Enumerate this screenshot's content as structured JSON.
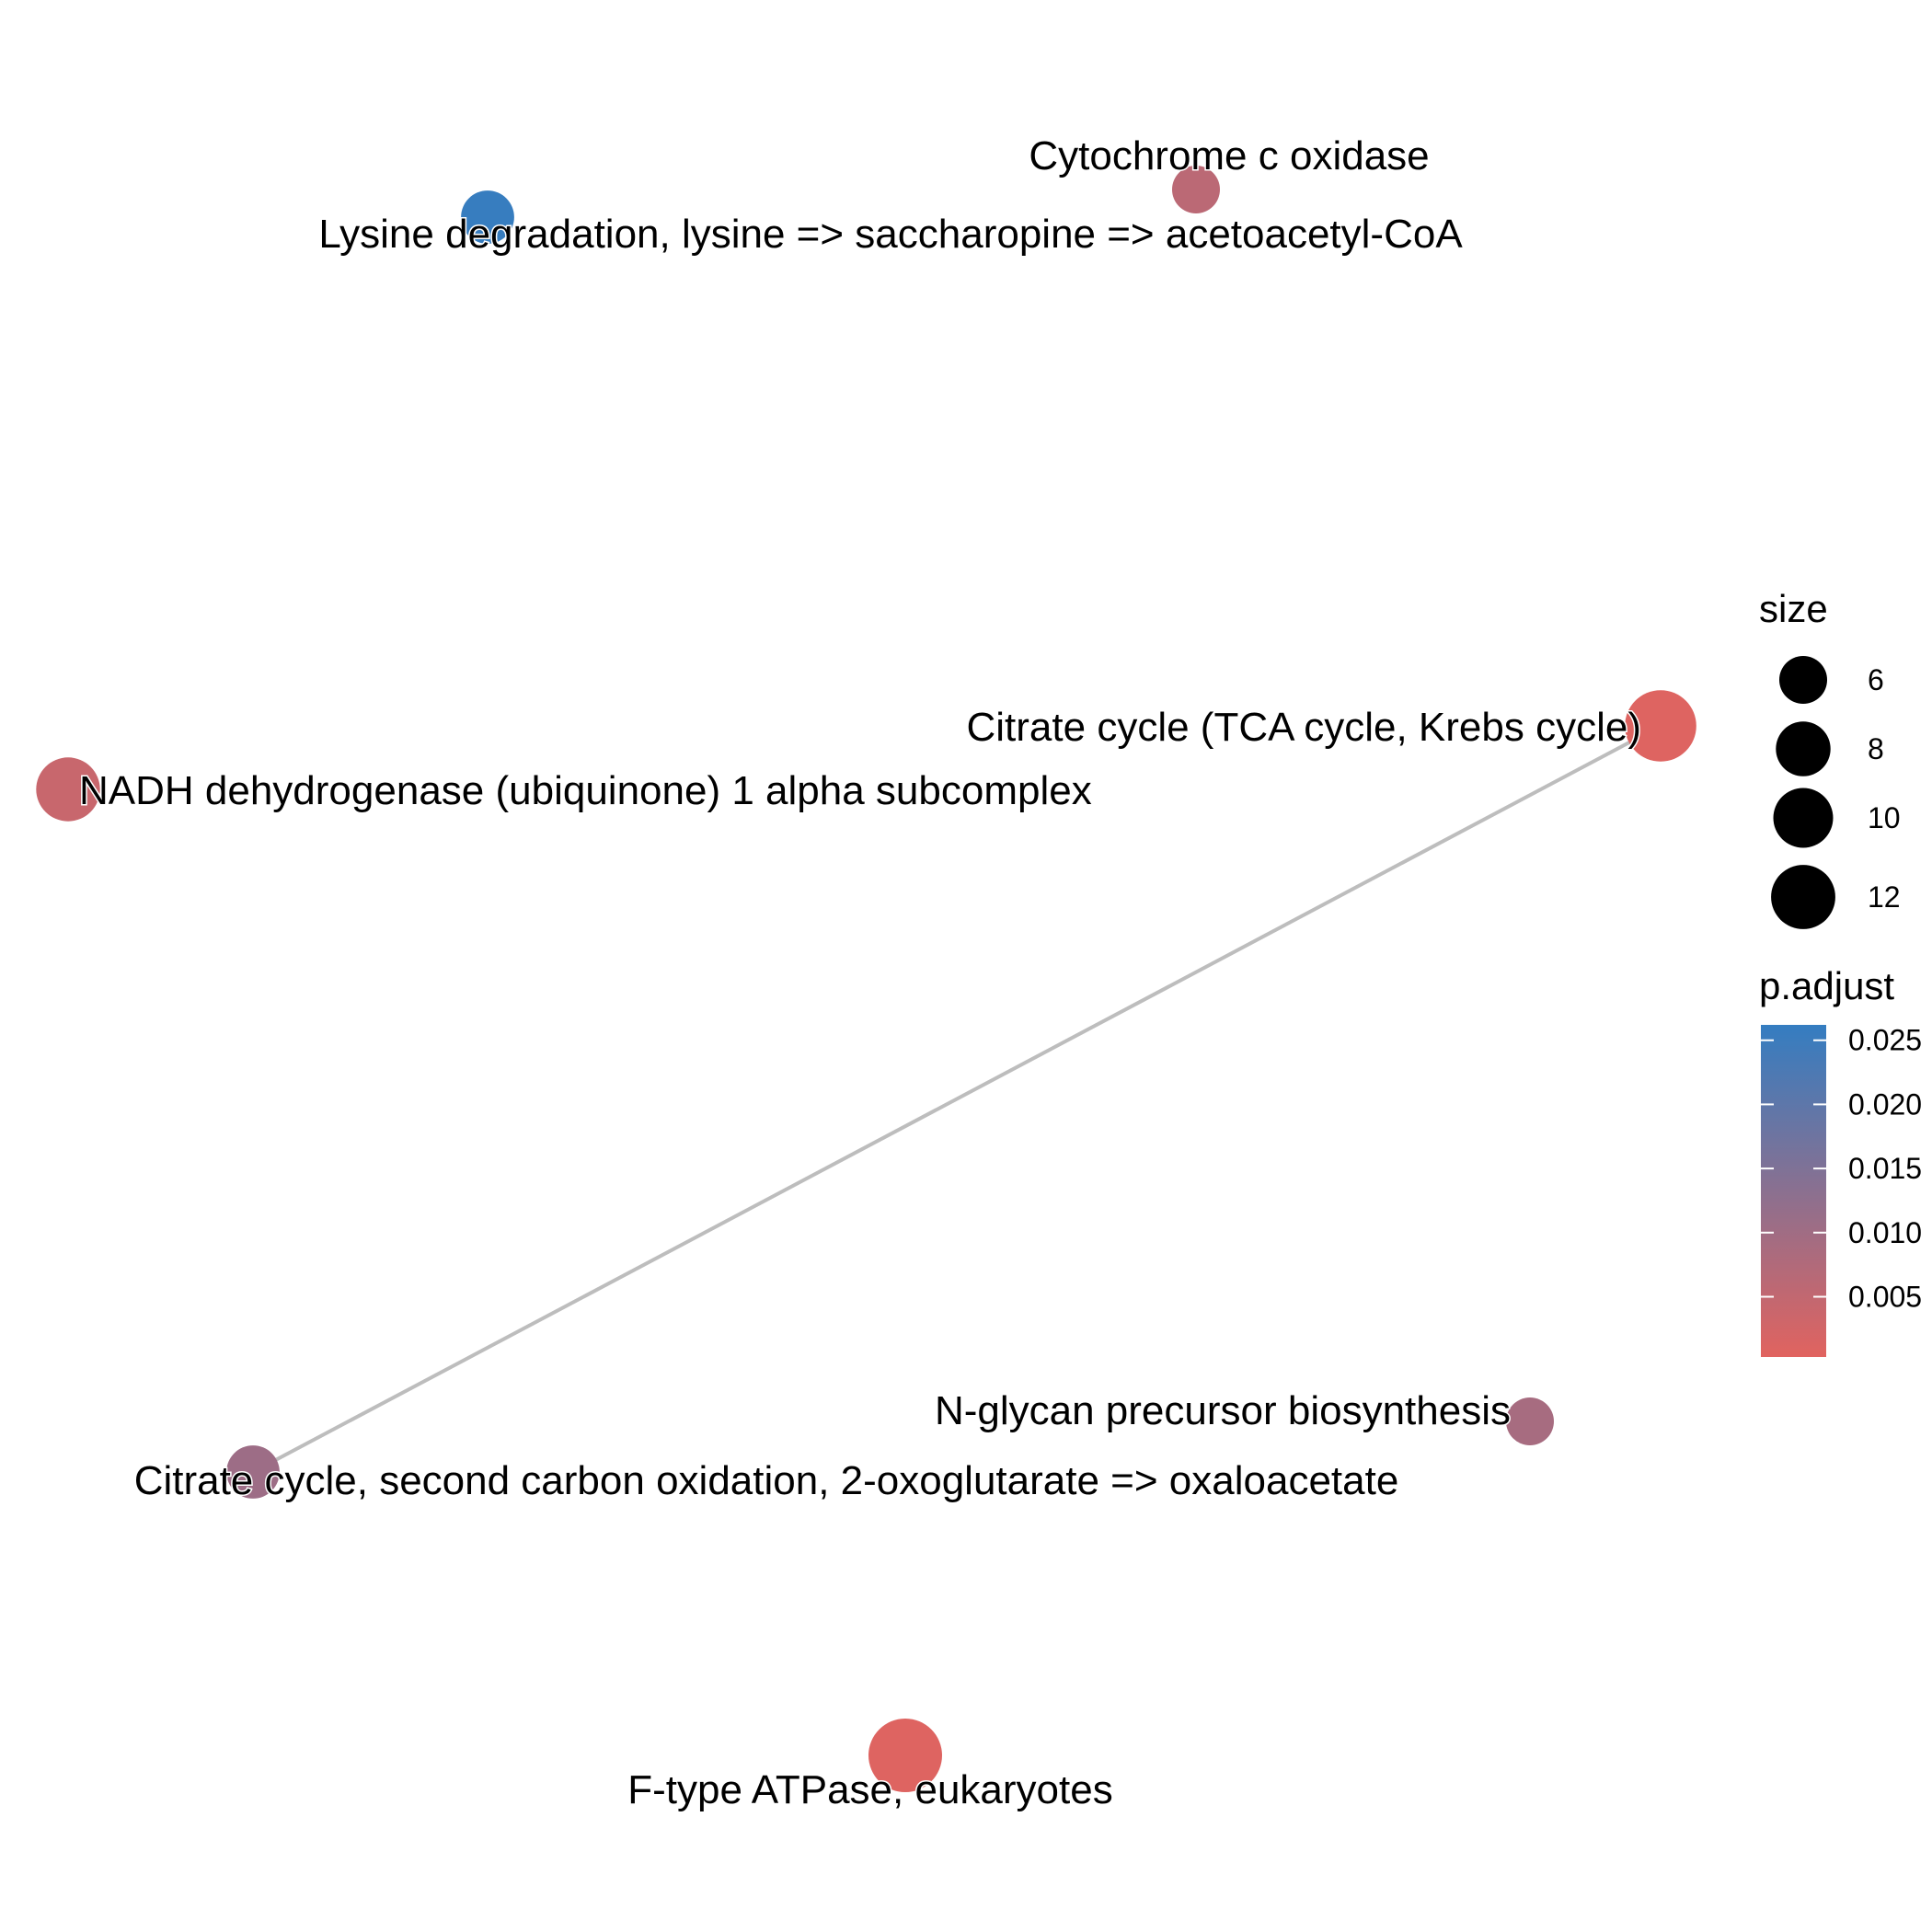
{
  "chart_data": {
    "type": "network",
    "nodes": [
      {
        "id": "lysine",
        "label": "Lysine degradation, lysine => saccharopine => acetoacetyl-CoA",
        "size": 6,
        "p_adjust": 0.0258
      },
      {
        "id": "cox",
        "label": "Cytochrome c oxidase",
        "size": 5,
        "p_adjust": 0.006
      },
      {
        "id": "nadh",
        "label": "NADH dehydrogenase (ubiquinone) 1 alpha subcomplex",
        "size": 9,
        "p_adjust": 0.004
      },
      {
        "id": "tca",
        "label": "Citrate cycle (TCA cycle, Krebs cycle)",
        "size": 12,
        "p_adjust": 0.0008
      },
      {
        "id": "nglycan",
        "label": "N-glycan precursor biosynthesis",
        "size": 5,
        "p_adjust": 0.009
      },
      {
        "id": "citrate2",
        "label": "Citrate cycle, second carbon oxidation, 2-oxoglutarate => oxaloacetate",
        "size": 6,
        "p_adjust": 0.0105
      },
      {
        "id": "atpase",
        "label": "F-type ATPase, eukaryotes",
        "size": 13,
        "p_adjust": 0.0008
      }
    ],
    "edges": [
      {
        "source": "tca",
        "target": "citrate2"
      }
    ],
    "legend": {
      "size_title": "size",
      "size_breaks": [
        6,
        8,
        10,
        12
      ],
      "color_title": "p.adjust",
      "color_breaks": [
        "0.025",
        "0.020",
        "0.015",
        "0.010",
        "0.005"
      ],
      "color_break_values": [
        0.025,
        0.02,
        0.015,
        0.01,
        0.005
      ],
      "color_range": [
        0.0003,
        0.0262
      ],
      "color_low": "#e1635f",
      "color_high": "#347dc1",
      "placement": "right"
    }
  }
}
